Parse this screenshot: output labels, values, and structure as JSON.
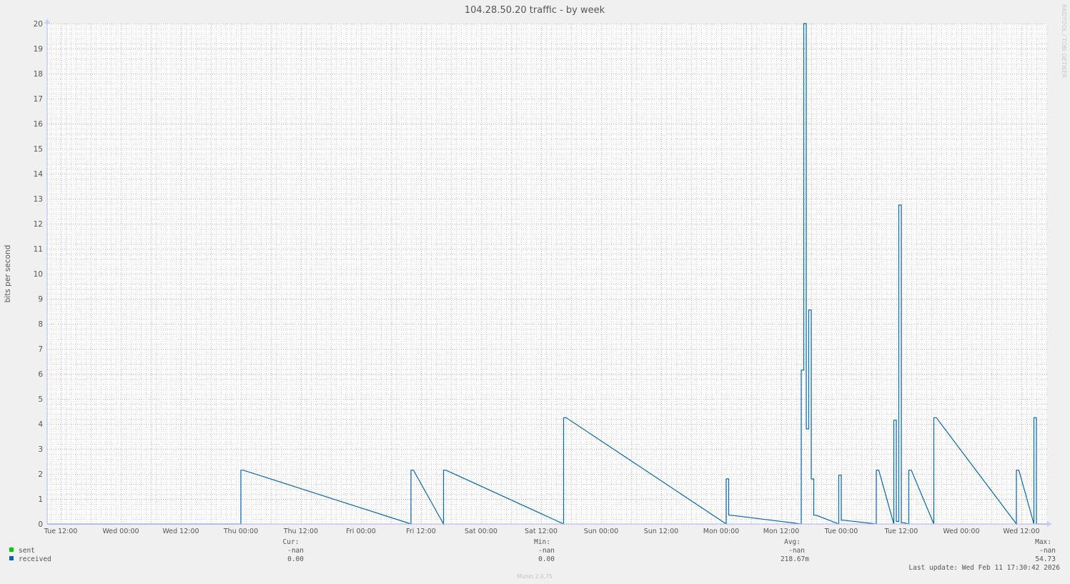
{
  "chart_data": {
    "type": "line",
    "title": "104.28.50.20 traffic - by week",
    "ylabel": "bits per second",
    "xlabel": "",
    "ylim": [
      0,
      20
    ],
    "xlim": [
      "2026-02-03T09:17",
      "2026-02-11T17:09"
    ],
    "grid": true,
    "yticks": [
      "0",
      "1",
      "2",
      "3",
      "4",
      "5",
      "6",
      "7",
      "8",
      "9",
      "10",
      "11",
      "12",
      "13",
      "14",
      "15",
      "16",
      "17",
      "18",
      "19",
      "20"
    ],
    "xticks": [
      {
        "t": "2026-02-03T12:00",
        "label": "Tue 12:00"
      },
      {
        "t": "2026-02-04T00:00",
        "label": "Wed 00:00"
      },
      {
        "t": "2026-02-04T12:00",
        "label": "Wed 12:00"
      },
      {
        "t": "2026-02-05T00:00",
        "label": "Thu 00:00"
      },
      {
        "t": "2026-02-05T12:00",
        "label": "Thu 12:00"
      },
      {
        "t": "2026-02-06T00:00",
        "label": "Fri 00:00"
      },
      {
        "t": "2026-02-06T12:00",
        "label": "Fri 12:00"
      },
      {
        "t": "2026-02-07T00:00",
        "label": "Sat 00:00"
      },
      {
        "t": "2026-02-07T12:00",
        "label": "Sat 12:00"
      },
      {
        "t": "2026-02-08T00:00",
        "label": "Sun 00:00"
      },
      {
        "t": "2026-02-08T12:00",
        "label": "Sun 12:00"
      },
      {
        "t": "2026-02-09T00:00",
        "label": "Mon 00:00"
      },
      {
        "t": "2026-02-09T12:00",
        "label": "Mon 12:00"
      },
      {
        "t": "2026-02-10T00:00",
        "label": "Tue 00:00"
      },
      {
        "t": "2026-02-10T12:00",
        "label": "Tue 12:00"
      },
      {
        "t": "2026-02-11T00:00",
        "label": "Wed 00:00"
      },
      {
        "t": "2026-02-11T12:00",
        "label": "Wed 12:00"
      }
    ],
    "series": [
      {
        "name": "sent",
        "color": "#00cc00",
        "points": []
      },
      {
        "name": "received",
        "color": "#0066b3",
        "step_minutes": 30,
        "points": [
          {
            "t": "2026-02-05T00:00",
            "v": 2.15
          },
          {
            "t": "2026-02-06T10:00",
            "v": 2.15
          },
          {
            "t": "2026-02-06T16:30",
            "v": 2.15
          },
          {
            "t": "2026-02-07T16:30",
            "v": 4.25
          },
          {
            "t": "2026-02-09T01:00",
            "v": 1.8
          },
          {
            "t": "2026-02-09T01:30",
            "v": 0.35
          },
          {
            "t": "2026-02-09T16:00",
            "v": 6.15
          },
          {
            "t": "2026-02-09T16:30",
            "v": 20.0
          },
          {
            "t": "2026-02-09T17:00",
            "v": 3.8
          },
          {
            "t": "2026-02-09T17:30",
            "v": 8.55
          },
          {
            "t": "2026-02-09T18:00",
            "v": 1.8
          },
          {
            "t": "2026-02-09T18:30",
            "v": 0.35
          },
          {
            "t": "2026-02-09T23:30",
            "v": 1.95
          },
          {
            "t": "2026-02-10T00:00",
            "v": 0.15
          },
          {
            "t": "2026-02-10T07:00",
            "v": 2.15
          },
          {
            "t": "2026-02-10T10:30",
            "v": 4.15
          },
          {
            "t": "2026-02-10T11:00",
            "v": 0.1
          },
          {
            "t": "2026-02-10T11:30",
            "v": 12.75
          },
          {
            "t": "2026-02-10T12:00",
            "v": 0.05
          },
          {
            "t": "2026-02-10T13:30",
            "v": 2.15
          },
          {
            "t": "2026-02-10T18:30",
            "v": 4.25
          },
          {
            "t": "2026-02-11T11:00",
            "v": 2.15
          },
          {
            "t": "2026-02-11T14:30",
            "v": 4.25
          }
        ]
      }
    ]
  },
  "legend": {
    "headers": {
      "cur": "Cur:",
      "min": "Min:",
      "avg": "Avg:",
      "max": "Max:"
    },
    "rows": [
      {
        "name": "sent",
        "color": "#00cc00",
        "cur": "-nan",
        "min": "-nan",
        "avg": "-nan",
        "max": "-nan"
      },
      {
        "name": "received",
        "color": "#0066b3",
        "cur": "0.00",
        "min": "0.00",
        "avg": "218.67m",
        "max": "54.73"
      }
    ]
  },
  "last_update": "Last update: Wed Feb 11 17:30:42 2026",
  "watermark": "RRDTOOL / TOBI OETIKER",
  "footer": "Munin 2.0.75"
}
